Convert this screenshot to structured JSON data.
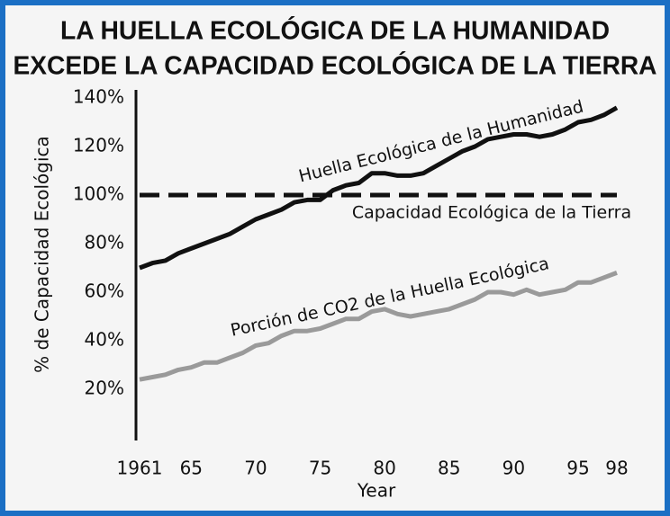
{
  "chart_data": {
    "type": "line",
    "title": [
      "LA HUELLA ECOLÓGICA DE LA HUMANIDAD",
      "EXCEDE LA CAPACIDAD ECOLÓGICA DE LA TIERRA"
    ],
    "x_label": "Year",
    "y_label": "% de Capacidad Ecológica",
    "x": [
      1961,
      1962,
      1963,
      1964,
      1965,
      1966,
      1967,
      1968,
      1969,
      1970,
      1971,
      1972,
      1973,
      1974,
      1975,
      1976,
      1977,
      1978,
      1979,
      1980,
      1981,
      1982,
      1983,
      1984,
      1985,
      1986,
      1987,
      1988,
      1989,
      1990,
      1991,
      1992,
      1993,
      1994,
      1995,
      1996,
      1997,
      1998
    ],
    "xlim": [
      1961,
      1998
    ],
    "xticks": [
      {
        "value": 1961,
        "label": "1961"
      },
      {
        "value": 1965,
        "label": "65"
      },
      {
        "value": 1970,
        "label": "70"
      },
      {
        "value": 1975,
        "label": "75"
      },
      {
        "value": 1980,
        "label": "80"
      },
      {
        "value": 1985,
        "label": "85"
      },
      {
        "value": 1990,
        "label": "90"
      },
      {
        "value": 1995,
        "label": "95"
      },
      {
        "value": 1998,
        "label": "98"
      }
    ],
    "ylim": [
      0,
      140
    ],
    "yticks": [
      {
        "value": 20,
        "label": "20%"
      },
      {
        "value": 40,
        "label": "40%"
      },
      {
        "value": 60,
        "label": "60%"
      },
      {
        "value": 80,
        "label": "80%"
      },
      {
        "value": 100,
        "label": "100%"
      },
      {
        "value": 120,
        "label": "120%"
      },
      {
        "value": 140,
        "label": "140%"
      }
    ],
    "grid": false,
    "series": [
      {
        "name": "Huella Ecológica de la Humanidad",
        "color": "#111111",
        "dashed": false,
        "values": [
          70,
          72,
          73,
          76,
          78,
          80,
          82,
          84,
          87,
          90,
          92,
          94,
          97,
          98,
          98,
          102,
          104,
          105,
          109,
          109,
          108,
          108,
          109,
          112,
          115,
          118,
          120,
          123,
          124,
          125,
          125,
          124,
          125,
          127,
          130,
          131,
          133,
          136
        ]
      },
      {
        "name": "Capacidad Ecológica de la Tierra",
        "color": "#111111",
        "dashed": true,
        "values": [
          100,
          100,
          100,
          100,
          100,
          100,
          100,
          100,
          100,
          100,
          100,
          100,
          100,
          100,
          100,
          100,
          100,
          100,
          100,
          100,
          100,
          100,
          100,
          100,
          100,
          100,
          100,
          100,
          100,
          100,
          100,
          100,
          100,
          100,
          100,
          100,
          100,
          100
        ]
      },
      {
        "name": "Porción de CO2 de la Huella Ecológica",
        "color": "#9a9a9a",
        "dashed": false,
        "values": [
          24,
          25,
          26,
          28,
          29,
          31,
          31,
          33,
          35,
          38,
          39,
          42,
          44,
          44,
          45,
          47,
          49,
          49,
          52,
          53,
          51,
          50,
          51,
          52,
          53,
          55,
          57,
          60,
          60,
          59,
          61,
          59,
          60,
          61,
          64,
          64,
          66,
          68
        ]
      }
    ]
  }
}
